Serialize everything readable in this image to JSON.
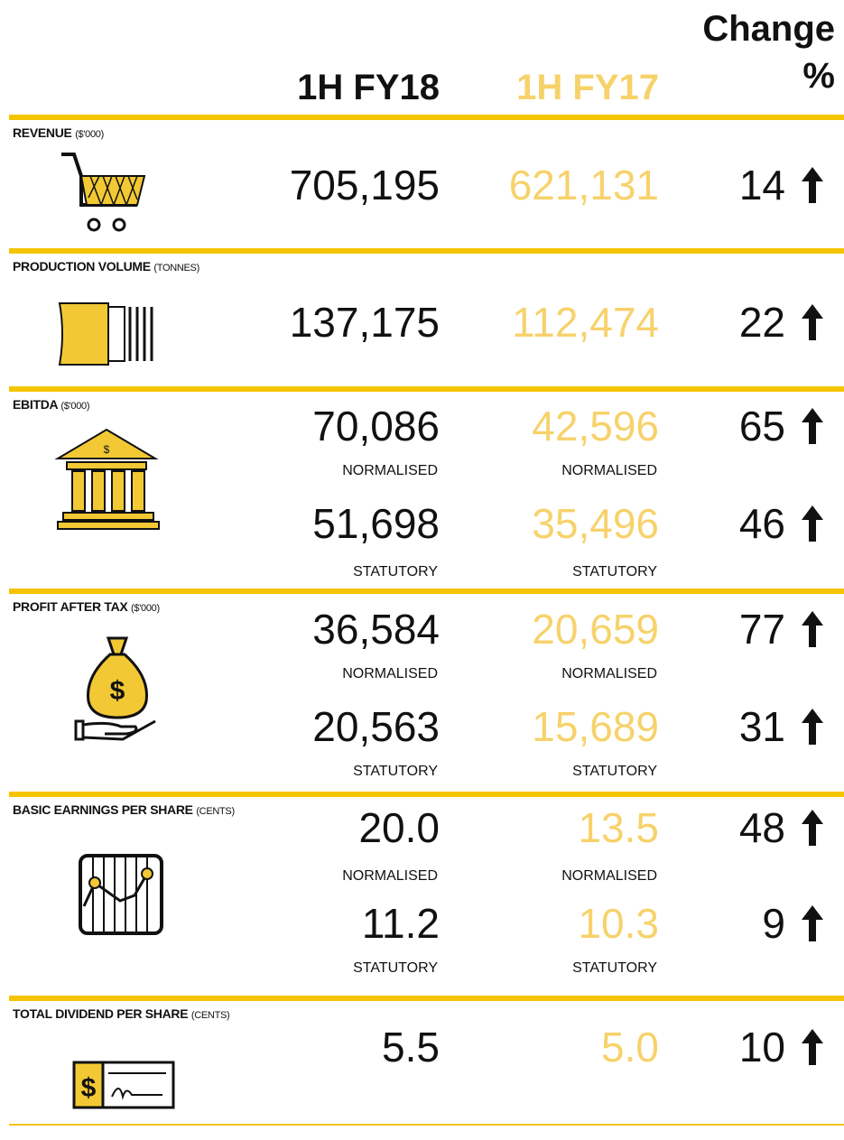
{
  "header": {
    "col_current": "1H FY18",
    "col_previous": "1H FY17",
    "col_change": "Change",
    "col_change_unit": "%"
  },
  "rows": [
    {
      "label": "REVENUE",
      "unit": "($'000)",
      "entries": [
        {
          "current": "705,195",
          "previous": "621,131",
          "change": "14"
        }
      ]
    },
    {
      "label": "PRODUCTION VOLUME",
      "unit": "(TONNES)",
      "entries": [
        {
          "current": "137,175",
          "previous": "112,474",
          "change": "22"
        }
      ]
    },
    {
      "label": "EBITDA",
      "unit": "($'000)",
      "entries": [
        {
          "current": "70,086",
          "previous": "42,596",
          "change": "65",
          "basis": "NORMALISED"
        },
        {
          "current": "51,698",
          "previous": "35,496",
          "change": "46",
          "basis": "STATUTORY"
        }
      ]
    },
    {
      "label": "PROFIT AFTER TAX",
      "unit": "($'000)",
      "entries": [
        {
          "current": "36,584",
          "previous": "20,659",
          "change": "77",
          "basis": "NORMALISED"
        },
        {
          "current": "20,563",
          "previous": "15,689",
          "change": "31",
          "basis": "STATUTORY"
        }
      ]
    },
    {
      "label": "BASIC EARNINGS PER SHARE",
      "unit": "(CENTS)",
      "entries": [
        {
          "current": "20.0",
          "previous": "13.5",
          "change": "48",
          "basis": "NORMALISED"
        },
        {
          "current": "11.2",
          "previous": "10.3",
          "change": "9",
          "basis": "STATUTORY"
        }
      ]
    },
    {
      "label": "TOTAL DIVIDEND PER SHARE",
      "unit": "(CENTS)",
      "entries": [
        {
          "current": "5.5",
          "previous": "5.0",
          "change": "10"
        }
      ]
    }
  ]
}
